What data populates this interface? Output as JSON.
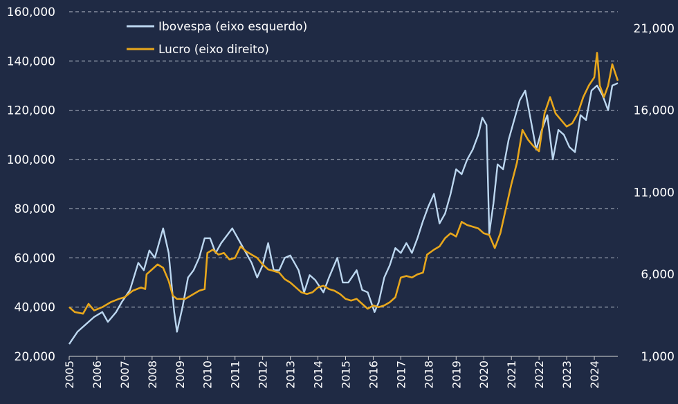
{
  "chart_data": {
    "type": "line",
    "title": "",
    "xlabel": "",
    "x_tick_labels": [
      "2005",
      "2006",
      "2007",
      "2008",
      "2009",
      "2010",
      "2011",
      "2012",
      "2013",
      "2014",
      "2015",
      "2016",
      "2017",
      "2018",
      "2019",
      "2020",
      "2021",
      "2022",
      "2023",
      "2024"
    ],
    "x_range": [
      2005,
      2024.85
    ],
    "y_left": {
      "range": [
        20000,
        160000
      ],
      "tick_labels": [
        "20,000",
        "40,000",
        "60,000",
        "80,000",
        "100,000",
        "120,000",
        "140,000",
        "160,000"
      ],
      "tick_values": [
        20000,
        40000,
        60000,
        80000,
        100000,
        120000,
        140000,
        160000
      ]
    },
    "y_right": {
      "range": [
        1000,
        22000
      ],
      "tick_labels": [
        "1,000",
        "6,000",
        "11,000",
        "16,000",
        "21,000"
      ],
      "tick_values": [
        1000,
        6000,
        11000,
        16000,
        21000
      ]
    },
    "grid": "horizontal dashed",
    "legend_position": "top-left",
    "series": [
      {
        "name": "Ibovespa (eixo esquerdo)",
        "axis": "left",
        "color": "#bcd7f0",
        "points": [
          [
            2005.0,
            25000
          ],
          [
            2005.3,
            30000
          ],
          [
            2005.6,
            33000
          ],
          [
            2005.9,
            36000
          ],
          [
            2006.2,
            38000
          ],
          [
            2006.4,
            34000
          ],
          [
            2006.7,
            38000
          ],
          [
            2006.9,
            42000
          ],
          [
            2007.2,
            47000
          ],
          [
            2007.5,
            58000
          ],
          [
            2007.7,
            55000
          ],
          [
            2007.9,
            63000
          ],
          [
            2008.1,
            60000
          ],
          [
            2008.4,
            72000
          ],
          [
            2008.6,
            62000
          ],
          [
            2008.8,
            38000
          ],
          [
            2008.9,
            30000
          ],
          [
            2009.1,
            40000
          ],
          [
            2009.3,
            52000
          ],
          [
            2009.5,
            55000
          ],
          [
            2009.7,
            60000
          ],
          [
            2009.9,
            68000
          ],
          [
            2010.1,
            68000
          ],
          [
            2010.3,
            62000
          ],
          [
            2010.5,
            66000
          ],
          [
            2010.7,
            69000
          ],
          [
            2010.9,
            72000
          ],
          [
            2011.1,
            68000
          ],
          [
            2011.3,
            64000
          ],
          [
            2011.6,
            58000
          ],
          [
            2011.8,
            52000
          ],
          [
            2012.0,
            57000
          ],
          [
            2012.2,
            66000
          ],
          [
            2012.4,
            55000
          ],
          [
            2012.6,
            55000
          ],
          [
            2012.8,
            60000
          ],
          [
            2013.0,
            61000
          ],
          [
            2013.3,
            55000
          ],
          [
            2013.5,
            46000
          ],
          [
            2013.7,
            53000
          ],
          [
            2013.9,
            51000
          ],
          [
            2014.2,
            46000
          ],
          [
            2014.4,
            52000
          ],
          [
            2014.7,
            60000
          ],
          [
            2014.9,
            50000
          ],
          [
            2015.1,
            50000
          ],
          [
            2015.4,
            55000
          ],
          [
            2015.6,
            47000
          ],
          [
            2015.8,
            46000
          ],
          [
            2016.05,
            38000
          ],
          [
            2016.2,
            42000
          ],
          [
            2016.4,
            52000
          ],
          [
            2016.6,
            57000
          ],
          [
            2016.8,
            64000
          ],
          [
            2017.0,
            62000
          ],
          [
            2017.2,
            66000
          ],
          [
            2017.4,
            62000
          ],
          [
            2017.6,
            68000
          ],
          [
            2017.8,
            75000
          ],
          [
            2018.0,
            81000
          ],
          [
            2018.2,
            86000
          ],
          [
            2018.4,
            74000
          ],
          [
            2018.6,
            78000
          ],
          [
            2018.8,
            86000
          ],
          [
            2019.0,
            96000
          ],
          [
            2019.2,
            94000
          ],
          [
            2019.4,
            100000
          ],
          [
            2019.6,
            104000
          ],
          [
            2019.8,
            110000
          ],
          [
            2019.95,
            117000
          ],
          [
            2020.1,
            114000
          ],
          [
            2020.2,
            70000
          ],
          [
            2020.35,
            82000
          ],
          [
            2020.5,
            98000
          ],
          [
            2020.7,
            96000
          ],
          [
            2020.9,
            108000
          ],
          [
            2021.1,
            116000
          ],
          [
            2021.3,
            124000
          ],
          [
            2021.5,
            128000
          ],
          [
            2021.7,
            116000
          ],
          [
            2021.9,
            104000
          ],
          [
            2022.1,
            112000
          ],
          [
            2022.3,
            118000
          ],
          [
            2022.5,
            100000
          ],
          [
            2022.7,
            112000
          ],
          [
            2022.9,
            110000
          ],
          [
            2023.1,
            105000
          ],
          [
            2023.3,
            103000
          ],
          [
            2023.5,
            118000
          ],
          [
            2023.7,
            116000
          ],
          [
            2023.9,
            128000
          ],
          [
            2024.1,
            130000
          ],
          [
            2024.3,
            126000
          ],
          [
            2024.5,
            120000
          ],
          [
            2024.65,
            130000
          ],
          [
            2024.85,
            131000
          ]
        ]
      },
      {
        "name": "Lucro (eixo direito)",
        "axis": "right",
        "color": "#e8a71c",
        "points": [
          [
            2005.0,
            4000
          ],
          [
            2005.2,
            3700
          ],
          [
            2005.5,
            3600
          ],
          [
            2005.7,
            4200
          ],
          [
            2005.9,
            3800
          ],
          [
            2006.2,
            4000
          ],
          [
            2006.5,
            4300
          ],
          [
            2006.8,
            4500
          ],
          [
            2007.0,
            4600
          ],
          [
            2007.3,
            5000
          ],
          [
            2007.6,
            5200
          ],
          [
            2007.75,
            5100
          ],
          [
            2007.8,
            6000
          ],
          [
            2008.0,
            6300
          ],
          [
            2008.2,
            6600
          ],
          [
            2008.4,
            6400
          ],
          [
            2008.6,
            5600
          ],
          [
            2008.75,
            4700
          ],
          [
            2008.9,
            4500
          ],
          [
            2009.2,
            4500
          ],
          [
            2009.5,
            4800
          ],
          [
            2009.7,
            5000
          ],
          [
            2009.9,
            5100
          ],
          [
            2010.0,
            7300
          ],
          [
            2010.2,
            7500
          ],
          [
            2010.4,
            7200
          ],
          [
            2010.6,
            7300
          ],
          [
            2010.8,
            6900
          ],
          [
            2011.0,
            7000
          ],
          [
            2011.2,
            7700
          ],
          [
            2011.4,
            7400
          ],
          [
            2011.6,
            7200
          ],
          [
            2011.8,
            7000
          ],
          [
            2012.0,
            6600
          ],
          [
            2012.2,
            6300
          ],
          [
            2012.4,
            6200
          ],
          [
            2012.6,
            6100
          ],
          [
            2012.8,
            5700
          ],
          [
            2013.0,
            5500
          ],
          [
            2013.2,
            5200
          ],
          [
            2013.4,
            4900
          ],
          [
            2013.6,
            4800
          ],
          [
            2013.8,
            4900
          ],
          [
            2014.0,
            5200
          ],
          [
            2014.2,
            5300
          ],
          [
            2014.4,
            5100
          ],
          [
            2014.6,
            5000
          ],
          [
            2014.8,
            4800
          ],
          [
            2015.0,
            4500
          ],
          [
            2015.2,
            4400
          ],
          [
            2015.4,
            4500
          ],
          [
            2015.6,
            4200
          ],
          [
            2015.8,
            3900
          ],
          [
            2016.0,
            4100
          ],
          [
            2016.2,
            4000
          ],
          [
            2016.4,
            4100
          ],
          [
            2016.6,
            4300
          ],
          [
            2016.8,
            4600
          ],
          [
            2017.0,
            5800
          ],
          [
            2017.2,
            5900
          ],
          [
            2017.4,
            5800
          ],
          [
            2017.6,
            6000
          ],
          [
            2017.8,
            6100
          ],
          [
            2017.95,
            7200
          ],
          [
            2018.2,
            7500
          ],
          [
            2018.4,
            7700
          ],
          [
            2018.6,
            8200
          ],
          [
            2018.8,
            8500
          ],
          [
            2019.0,
            8300
          ],
          [
            2019.2,
            9200
          ],
          [
            2019.4,
            9000
          ],
          [
            2019.6,
            8900
          ],
          [
            2019.8,
            8800
          ],
          [
            2020.0,
            8500
          ],
          [
            2020.2,
            8400
          ],
          [
            2020.4,
            7600
          ],
          [
            2020.6,
            8500
          ],
          [
            2020.8,
            10000
          ],
          [
            2021.0,
            11500
          ],
          [
            2021.2,
            12800
          ],
          [
            2021.4,
            14800
          ],
          [
            2021.6,
            14200
          ],
          [
            2021.8,
            13800
          ],
          [
            2022.0,
            13500
          ],
          [
            2022.2,
            15800
          ],
          [
            2022.4,
            16800
          ],
          [
            2022.6,
            15800
          ],
          [
            2022.8,
            15400
          ],
          [
            2023.0,
            15000
          ],
          [
            2023.2,
            15200
          ],
          [
            2023.4,
            15800
          ],
          [
            2023.6,
            16800
          ],
          [
            2023.8,
            17500
          ],
          [
            2024.0,
            18000
          ],
          [
            2024.1,
            19500
          ],
          [
            2024.2,
            17500
          ],
          [
            2024.35,
            16800
          ],
          [
            2024.5,
            17500
          ],
          [
            2024.65,
            18800
          ],
          [
            2024.85,
            17800
          ]
        ]
      }
    ]
  }
}
